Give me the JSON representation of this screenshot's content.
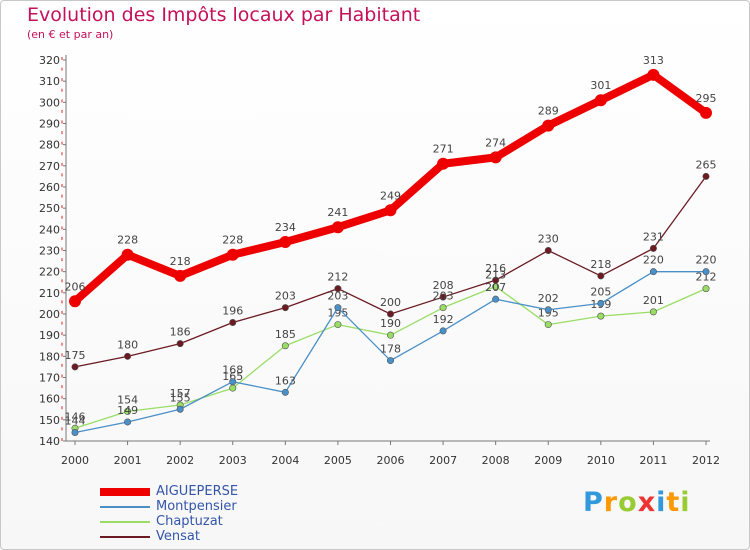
{
  "chart_data": {
    "type": "line",
    "title": "Evolution des Impôts locaux par Habitant",
    "subtitle": "(en € et par an)",
    "x": [
      "2000",
      "2001",
      "2002",
      "2003",
      "2004",
      "2005",
      "2006",
      "2007",
      "2008",
      "2009",
      "2010",
      "2011",
      "2012"
    ],
    "ylim": [
      140,
      320
    ],
    "y_ticks": [
      140,
      150,
      160,
      170,
      180,
      190,
      200,
      210,
      220,
      230,
      240,
      250,
      260,
      270,
      280,
      290,
      300,
      310,
      320
    ],
    "grid": false,
    "legend_position": "bottom-left",
    "series": [
      {
        "name": "AIGUEPERSE",
        "color": "#ee0000",
        "values": [
          206,
          228,
          218,
          228,
          234,
          241,
          249,
          271,
          274,
          289,
          301,
          313,
          295
        ]
      },
      {
        "name": "Montpensier",
        "color": "#4a90c8",
        "values": [
          144,
          149,
          155,
          168,
          163,
          203,
          178,
          192,
          207,
          202,
          205,
          220,
          220
        ]
      },
      {
        "name": "Chaptuzat",
        "color": "#99dd66",
        "values": [
          146,
          154,
          157,
          165,
          185,
          195,
          190,
          203,
          213,
          195,
          199,
          201,
          212
        ]
      },
      {
        "name": "Vensat",
        "color": "#6b1a22",
        "values": [
          175,
          180,
          186,
          196,
          203,
          212,
          200,
          208,
          216,
          230,
          218,
          231,
          265
        ]
      }
    ]
  },
  "logo": {
    "letters": [
      "P",
      "r",
      "o",
      "x",
      "i",
      "t",
      "i"
    ],
    "colors": [
      "#3399dd",
      "#ff9900",
      "#99cc33",
      "#ee3333",
      "#3399dd",
      "#ff9900",
      "#99cc33"
    ]
  }
}
